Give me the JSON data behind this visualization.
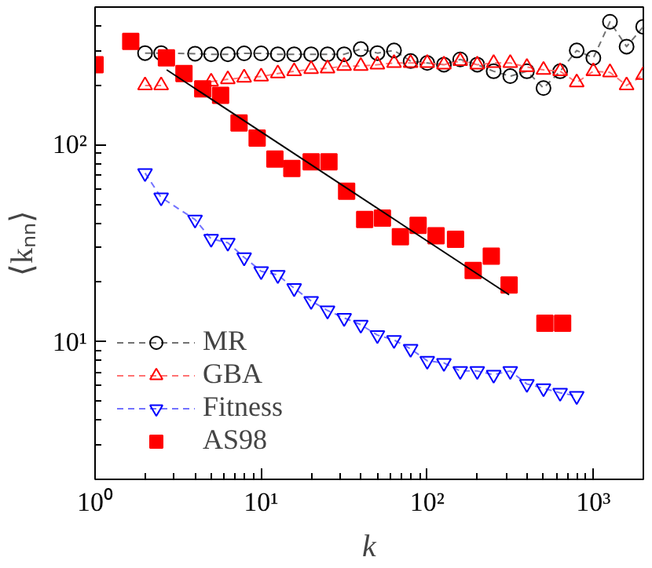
{
  "chart_data": {
    "type": "line",
    "xlabel": "k",
    "ylabel": "⟨kₙₙ⟩",
    "log": "xy",
    "grid": false,
    "legend": "bottom left",
    "xlim": [
      1,
      2000
    ],
    "ylim": [
      2,
      500
    ],
    "xticks": [
      {
        "value": 1,
        "label": "10⁰"
      },
      {
        "value": 10,
        "label": "10¹"
      },
      {
        "value": 100,
        "label": "10²"
      },
      {
        "value": 1000,
        "label": "10³"
      }
    ],
    "yticks": [
      {
        "value": 10,
        "label": "10¹"
      },
      {
        "value": 100,
        "label": "10²"
      }
    ],
    "series": [
      {
        "name": "MR",
        "color": "#000000",
        "marker": "circle",
        "line_style": "dashed",
        "x": [
          2.0,
          2.5,
          4.0,
          5.0,
          6.3,
          7.9,
          10,
          12.6,
          15.8,
          20,
          25.1,
          31.6,
          39.8,
          50.1,
          63.1,
          79.4,
          100,
          126,
          158,
          200,
          251,
          316,
          398,
          501,
          631,
          794,
          1000,
          1259,
          1585,
          1995
        ],
        "values": [
          292,
          292,
          290,
          288,
          288,
          291,
          291,
          288,
          288,
          288,
          288,
          288,
          306,
          292,
          301,
          266,
          260,
          255,
          271,
          255,
          236,
          223,
          236,
          194,
          236,
          301,
          276,
          421,
          315,
          397
        ]
      },
      {
        "name": "GBA",
        "color": "#ff0000",
        "marker": "triangle",
        "line_style": "dashed",
        "x": [
          2.0,
          2.5,
          4.0,
          5.0,
          6.3,
          7.9,
          10,
          12.6,
          15.8,
          20,
          25.1,
          31.6,
          39.8,
          50.1,
          63.1,
          79.4,
          100,
          126,
          158,
          200,
          251,
          316,
          398,
          501,
          631,
          794,
          1000,
          1259,
          1585,
          1995
        ],
        "values": [
          200,
          200,
          null,
          209,
          215,
          219,
          222,
          230,
          236,
          242,
          244,
          251,
          251,
          255,
          260,
          260,
          260,
          255,
          266,
          255,
          260,
          260,
          248,
          240,
          236,
          207,
          236,
          233,
          200,
          226
        ]
      },
      {
        "name": "Fitness",
        "color": "#0000ff",
        "marker": "triangle",
        "line_style": "dashed",
        "x": [
          2.0,
          2.5,
          4.0,
          5.0,
          6.3,
          7.9,
          10,
          12.6,
          15.8,
          20,
          25.1,
          31.6,
          39.8,
          50.1,
          63.1,
          79.4,
          100,
          126,
          158,
          200,
          251,
          316,
          398,
          501,
          631,
          794
        ],
        "values": [
          71.8,
          54.0,
          41.7,
          33.3,
          31.8,
          26.8,
          22.8,
          21.8,
          18.7,
          16.1,
          14.4,
          13.2,
          12.2,
          10.8,
          10.2,
          9.2,
          8.0,
          7.8,
          7.1,
          7.1,
          6.8,
          7.1,
          6.1,
          5.8,
          5.5,
          5.3
        ]
      },
      {
        "name": "AS98",
        "type": "scatter",
        "color": "#ff0000",
        "marker": "square",
        "x": [
          1,
          1.64,
          2.69,
          3.43,
          4.45,
          5.7,
          7.36,
          9.46,
          12.1,
          15.3,
          20.0,
          25.6,
          32.7,
          42.0,
          53.7,
          68.9,
          88.1,
          113,
          148,
          189,
          243,
          311,
          511,
          653
        ],
        "values": [
          255,
          335,
          276,
          230,
          192,
          178,
          129,
          108,
          84.5,
          75.8,
          81.9,
          81.9,
          58.0,
          41.7,
          42.4,
          34.1,
          39.0,
          34.5,
          33.1,
          23.0,
          27.2,
          19.4,
          12.4,
          12.4
        ]
      },
      {
        "color": "#000000",
        "marker": "none",
        "line_style": "solid",
        "x": [
          2.7,
          311
        ],
        "values": [
          240,
          17.3
        ]
      }
    ]
  }
}
